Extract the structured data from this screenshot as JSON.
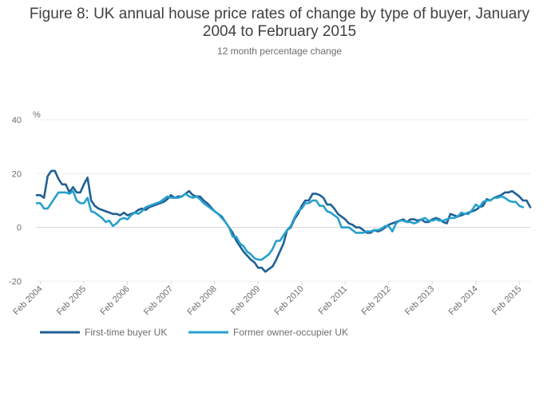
{
  "chart_data": {
    "type": "line",
    "title": "Figure 8: UK annual house price rates of change by type of buyer, January 2004 to February 2015",
    "subtitle": "12 month percentage change",
    "ylabel": "%",
    "xlabel": "",
    "ylim": [
      -20,
      40
    ],
    "yticks": [
      -20,
      0,
      20,
      40
    ],
    "xticks": [
      "Feb 2004",
      "Feb 2005",
      "Feb 2006",
      "Feb 2007",
      "Feb 2008",
      "Feb 2009",
      "Feb 2010",
      "Feb 2011",
      "Feb 2012",
      "Feb 2013",
      "Feb 2014",
      "Feb 2015"
    ],
    "x_start": "Jan 2004",
    "x_end": "Feb 2015",
    "grid": "horizontal",
    "legend_position": "bottom-left",
    "series": [
      {
        "name": "First-time buyer UK",
        "color": "#206095",
        "values": [
          12,
          12,
          11,
          19,
          21,
          21,
          18,
          16,
          16,
          13,
          15,
          13,
          13,
          16,
          18.5,
          10,
          8,
          7,
          6.5,
          6,
          5.5,
          5,
          5,
          4.5,
          5.5,
          4.5,
          5,
          5.5,
          6.5,
          7,
          6.5,
          7.5,
          8,
          8.5,
          9,
          9.5,
          10.5,
          12,
          11,
          11.5,
          11.5,
          12.5,
          13.5,
          12,
          11.5,
          11.5,
          10,
          9,
          7.5,
          6,
          5,
          4,
          2,
          0,
          -2,
          -5,
          -7,
          -9,
          -10.5,
          -12,
          -13,
          -15,
          -15,
          -16.5,
          -15.5,
          -14.5,
          -12,
          -9,
          -6,
          -1,
          0,
          3,
          5,
          8,
          10,
          10,
          12.5,
          12.5,
          12,
          11,
          8.5,
          8.5,
          7,
          5,
          4,
          3,
          1.5,
          1,
          0,
          0,
          -1,
          -2,
          -2,
          -1,
          -1.5,
          -1,
          0,
          1,
          1.5,
          2,
          2.5,
          3,
          2,
          3,
          3,
          2.5,
          3,
          2,
          2,
          3,
          3.5,
          3,
          2,
          1.5,
          5,
          4.5,
          4,
          4.5,
          5,
          5.5,
          6,
          6.5,
          7.5,
          8,
          10.5,
          10,
          11,
          11.5,
          12,
          13,
          13,
          13.5,
          12.5,
          11.5,
          10,
          10,
          7.5
        ]
      },
      {
        "name": "Former owner-occupier UK",
        "color": "#27a0cc",
        "values": [
          9,
          9,
          7,
          7,
          9,
          11,
          13,
          13,
          13,
          12.5,
          13.5,
          10,
          9,
          9,
          11,
          6,
          5.5,
          4.5,
          3.5,
          2,
          2.5,
          0.5,
          1.5,
          3,
          3.5,
          3,
          4.5,
          5.5,
          5,
          6,
          7.5,
          8,
          8.5,
          9,
          9.5,
          10.5,
          11.5,
          11,
          11,
          11,
          11.5,
          12.5,
          11.5,
          11,
          11.5,
          10.5,
          9,
          8,
          7,
          6,
          5,
          3.5,
          2,
          0,
          -3.5,
          -3.5,
          -6,
          -7,
          -9,
          -10,
          -11.5,
          -12,
          -12,
          -11,
          -10,
          -8,
          -5,
          -5,
          -3,
          -1,
          0.5,
          3.5,
          6,
          7,
          9,
          9,
          10,
          10,
          8,
          8,
          6,
          5.5,
          4.5,
          3.5,
          0,
          0,
          0,
          -1,
          -2,
          -2,
          -2,
          -1.5,
          -1.5,
          -1,
          -1,
          -0.5,
          0.5,
          0.5,
          -1.5,
          1.5,
          2.5,
          2.5,
          2,
          2,
          1.5,
          2,
          3,
          3.5,
          2.5,
          2.5,
          3,
          2.5,
          2.5,
          3,
          3.5,
          3.5,
          4,
          5.5,
          5,
          5,
          6.5,
          8.5,
          7.5,
          9.5,
          10,
          10,
          11,
          11,
          11.5,
          11,
          10,
          9.5,
          9.5,
          8,
          7.5
        ]
      }
    ]
  }
}
